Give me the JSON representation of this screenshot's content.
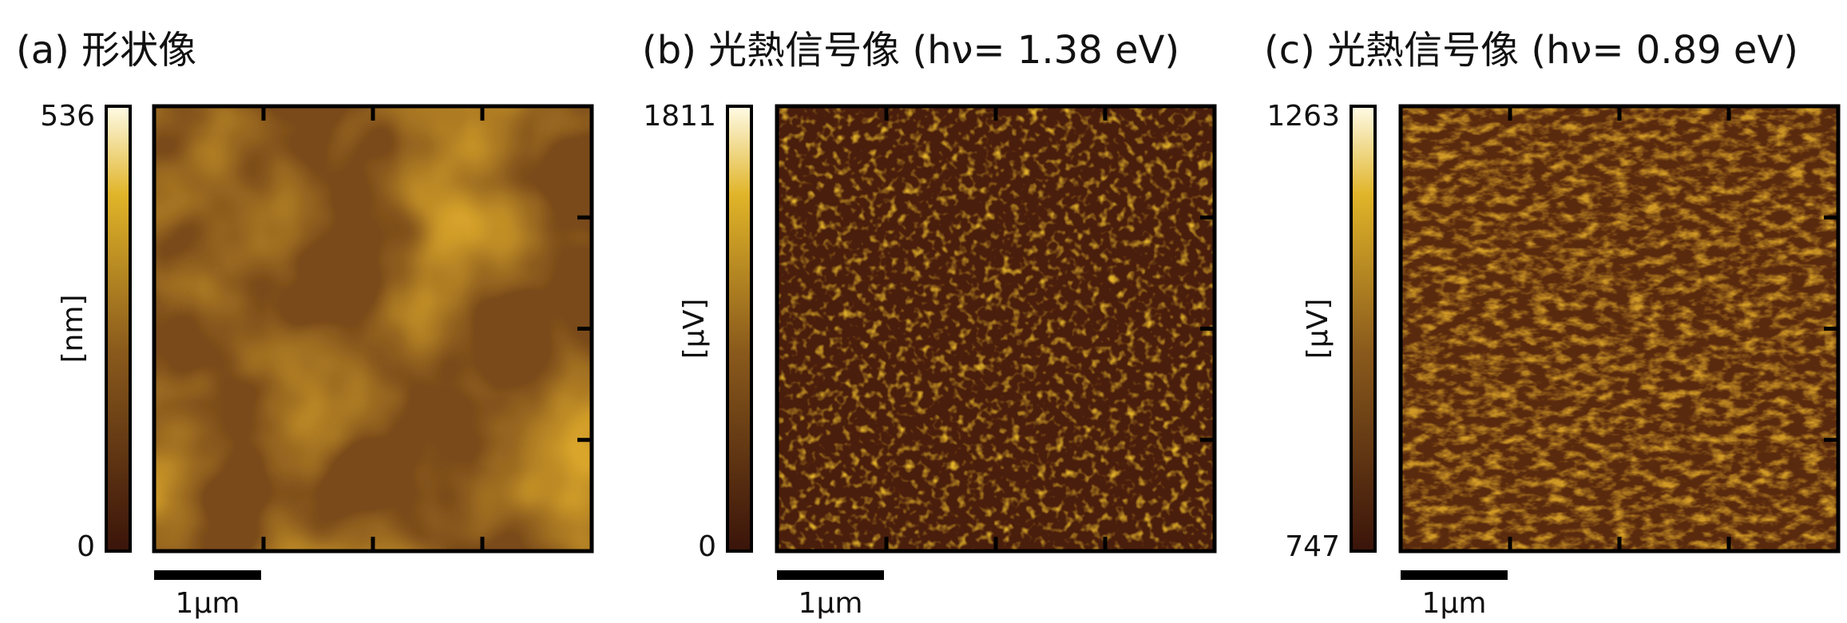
{
  "panels": [
    {
      "title": "(a) 形状像",
      "colorbar_max": "536",
      "colorbar_min": "0",
      "unit": "[nm]",
      "scalebar": "1μm"
    },
    {
      "title": "(b) 光熱信号像 (hν= 1.38 eV)",
      "colorbar_max": "1811",
      "colorbar_min": "0",
      "unit": "[μV]",
      "scalebar": "1μm"
    },
    {
      "title": "(c) 光熱信号像 (hν= 0.89 eV)",
      "colorbar_max": "1263",
      "colorbar_min": "747",
      "unit": "[μV]",
      "scalebar": "1μm"
    }
  ]
}
